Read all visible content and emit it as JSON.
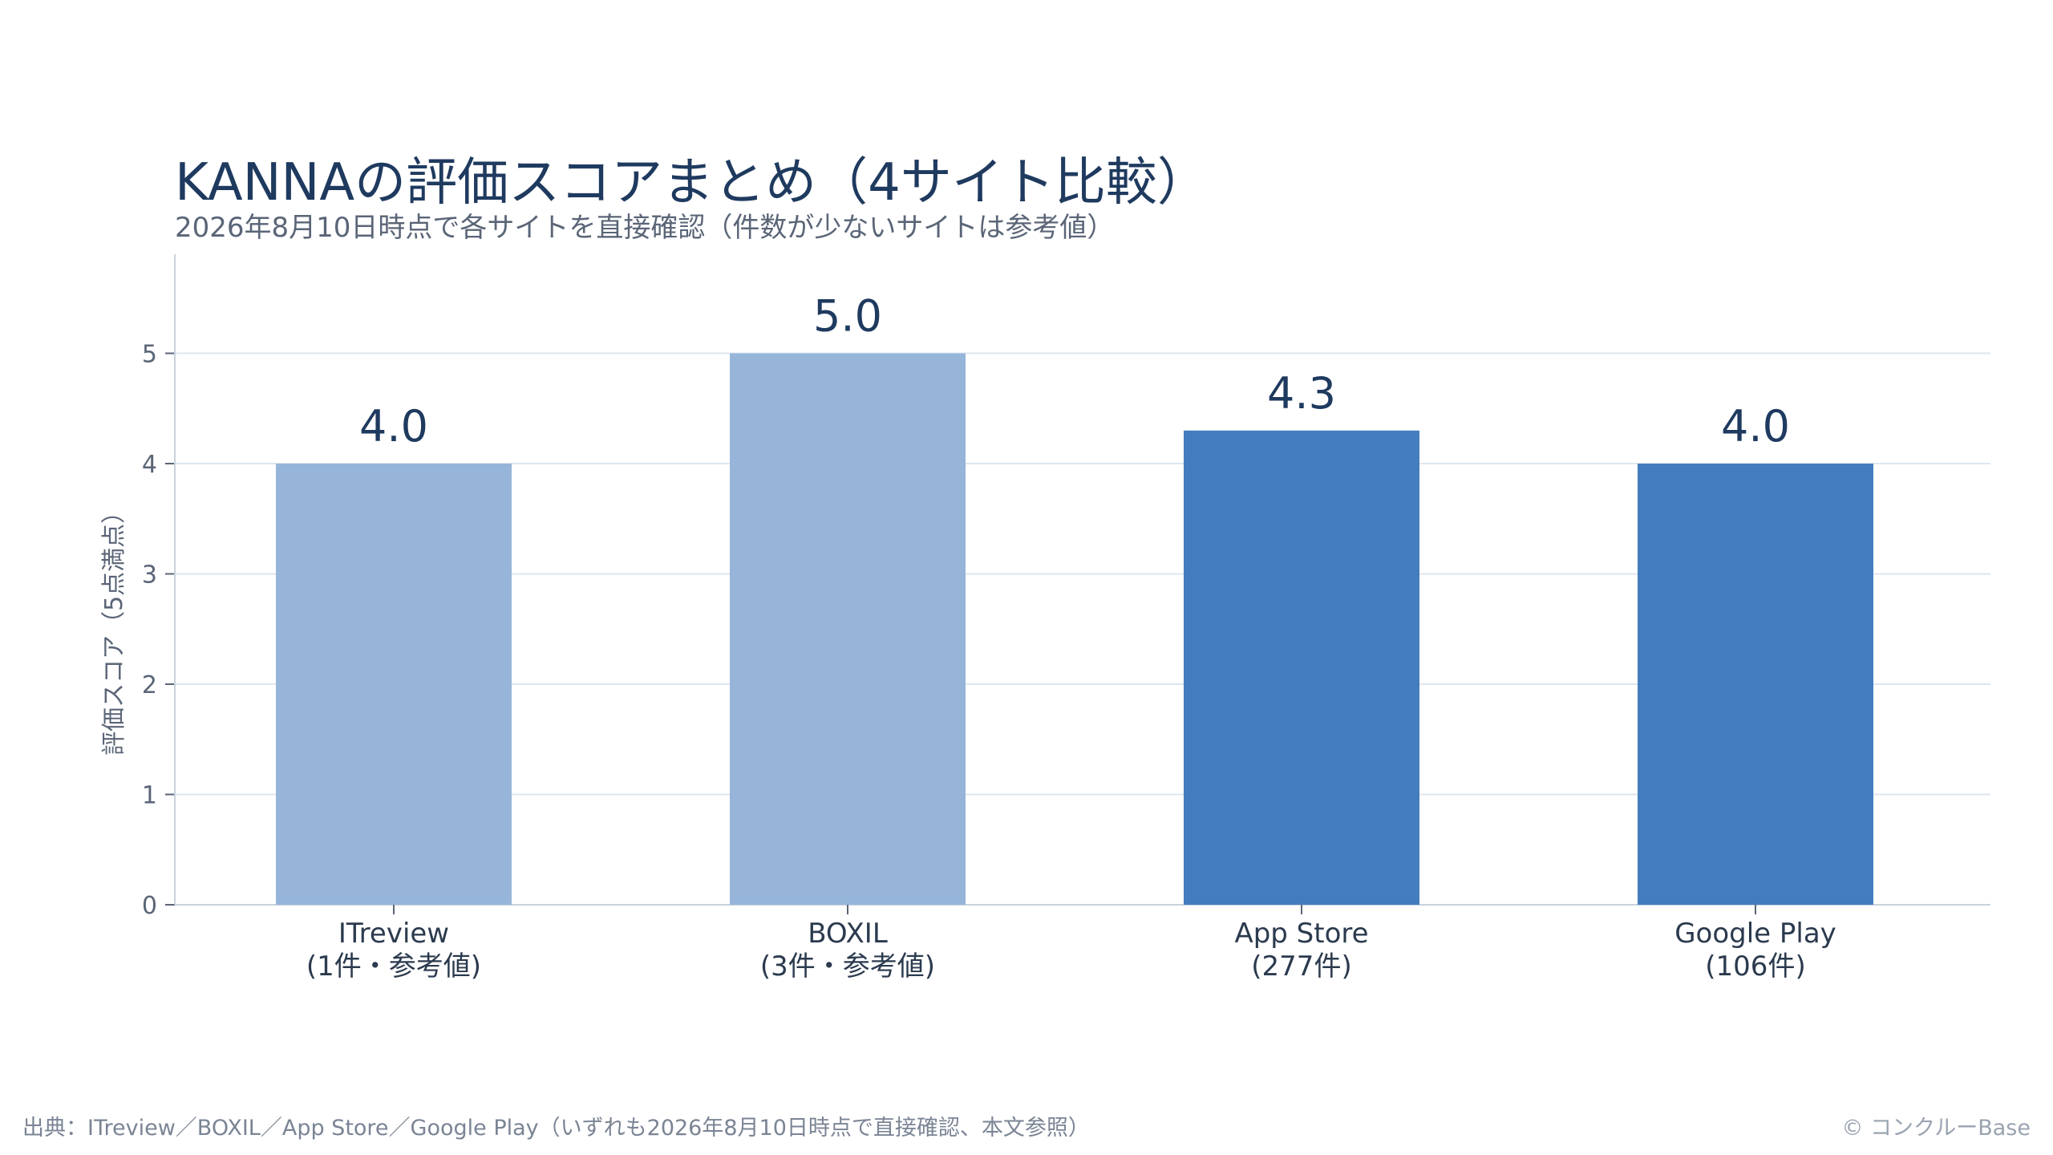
{
  "chart_data": {
    "type": "bar",
    "title": "KANNAの評価スコアまとめ（4サイト比較）",
    "subtitle": "2026年8月10日時点で各サイトを直接確認（件数が少ないサイトは参考値）",
    "ylabel": "評価スコア（5点満点）",
    "xlabel": "",
    "ylim": [
      0,
      5.9
    ],
    "yticks": [
      "0",
      "1",
      "2",
      "3",
      "4",
      "5"
    ],
    "grid": true,
    "categories": [
      [
        "ITreview",
        "(1件・参考値)"
      ],
      [
        "BOXIL",
        "(3件・参考値)"
      ],
      [
        "App Store",
        "(277件)"
      ],
      [
        "Google Play",
        "(106件)"
      ]
    ],
    "values": [
      4.0,
      5.0,
      4.3,
      4.0
    ],
    "value_labels": [
      "4.0",
      "5.0",
      "4.3",
      "4.0"
    ],
    "bar_colors": [
      "#96b5d9",
      "#96b5d9",
      "#447dbd",
      "#447dbd"
    ]
  },
  "footer": {
    "source": "出典：ITreview／BOXIL／App Store／Google Play（いずれも2026年8月10日時点で直接確認、本文参照）",
    "copyright": "© コンクルーBase"
  },
  "colors": {
    "title": "#1f3a5f",
    "grid": "#dde6ef",
    "axis": "#c9d2dc",
    "tick_text": "#5a6577",
    "value_text": "#1f3a5f"
  }
}
